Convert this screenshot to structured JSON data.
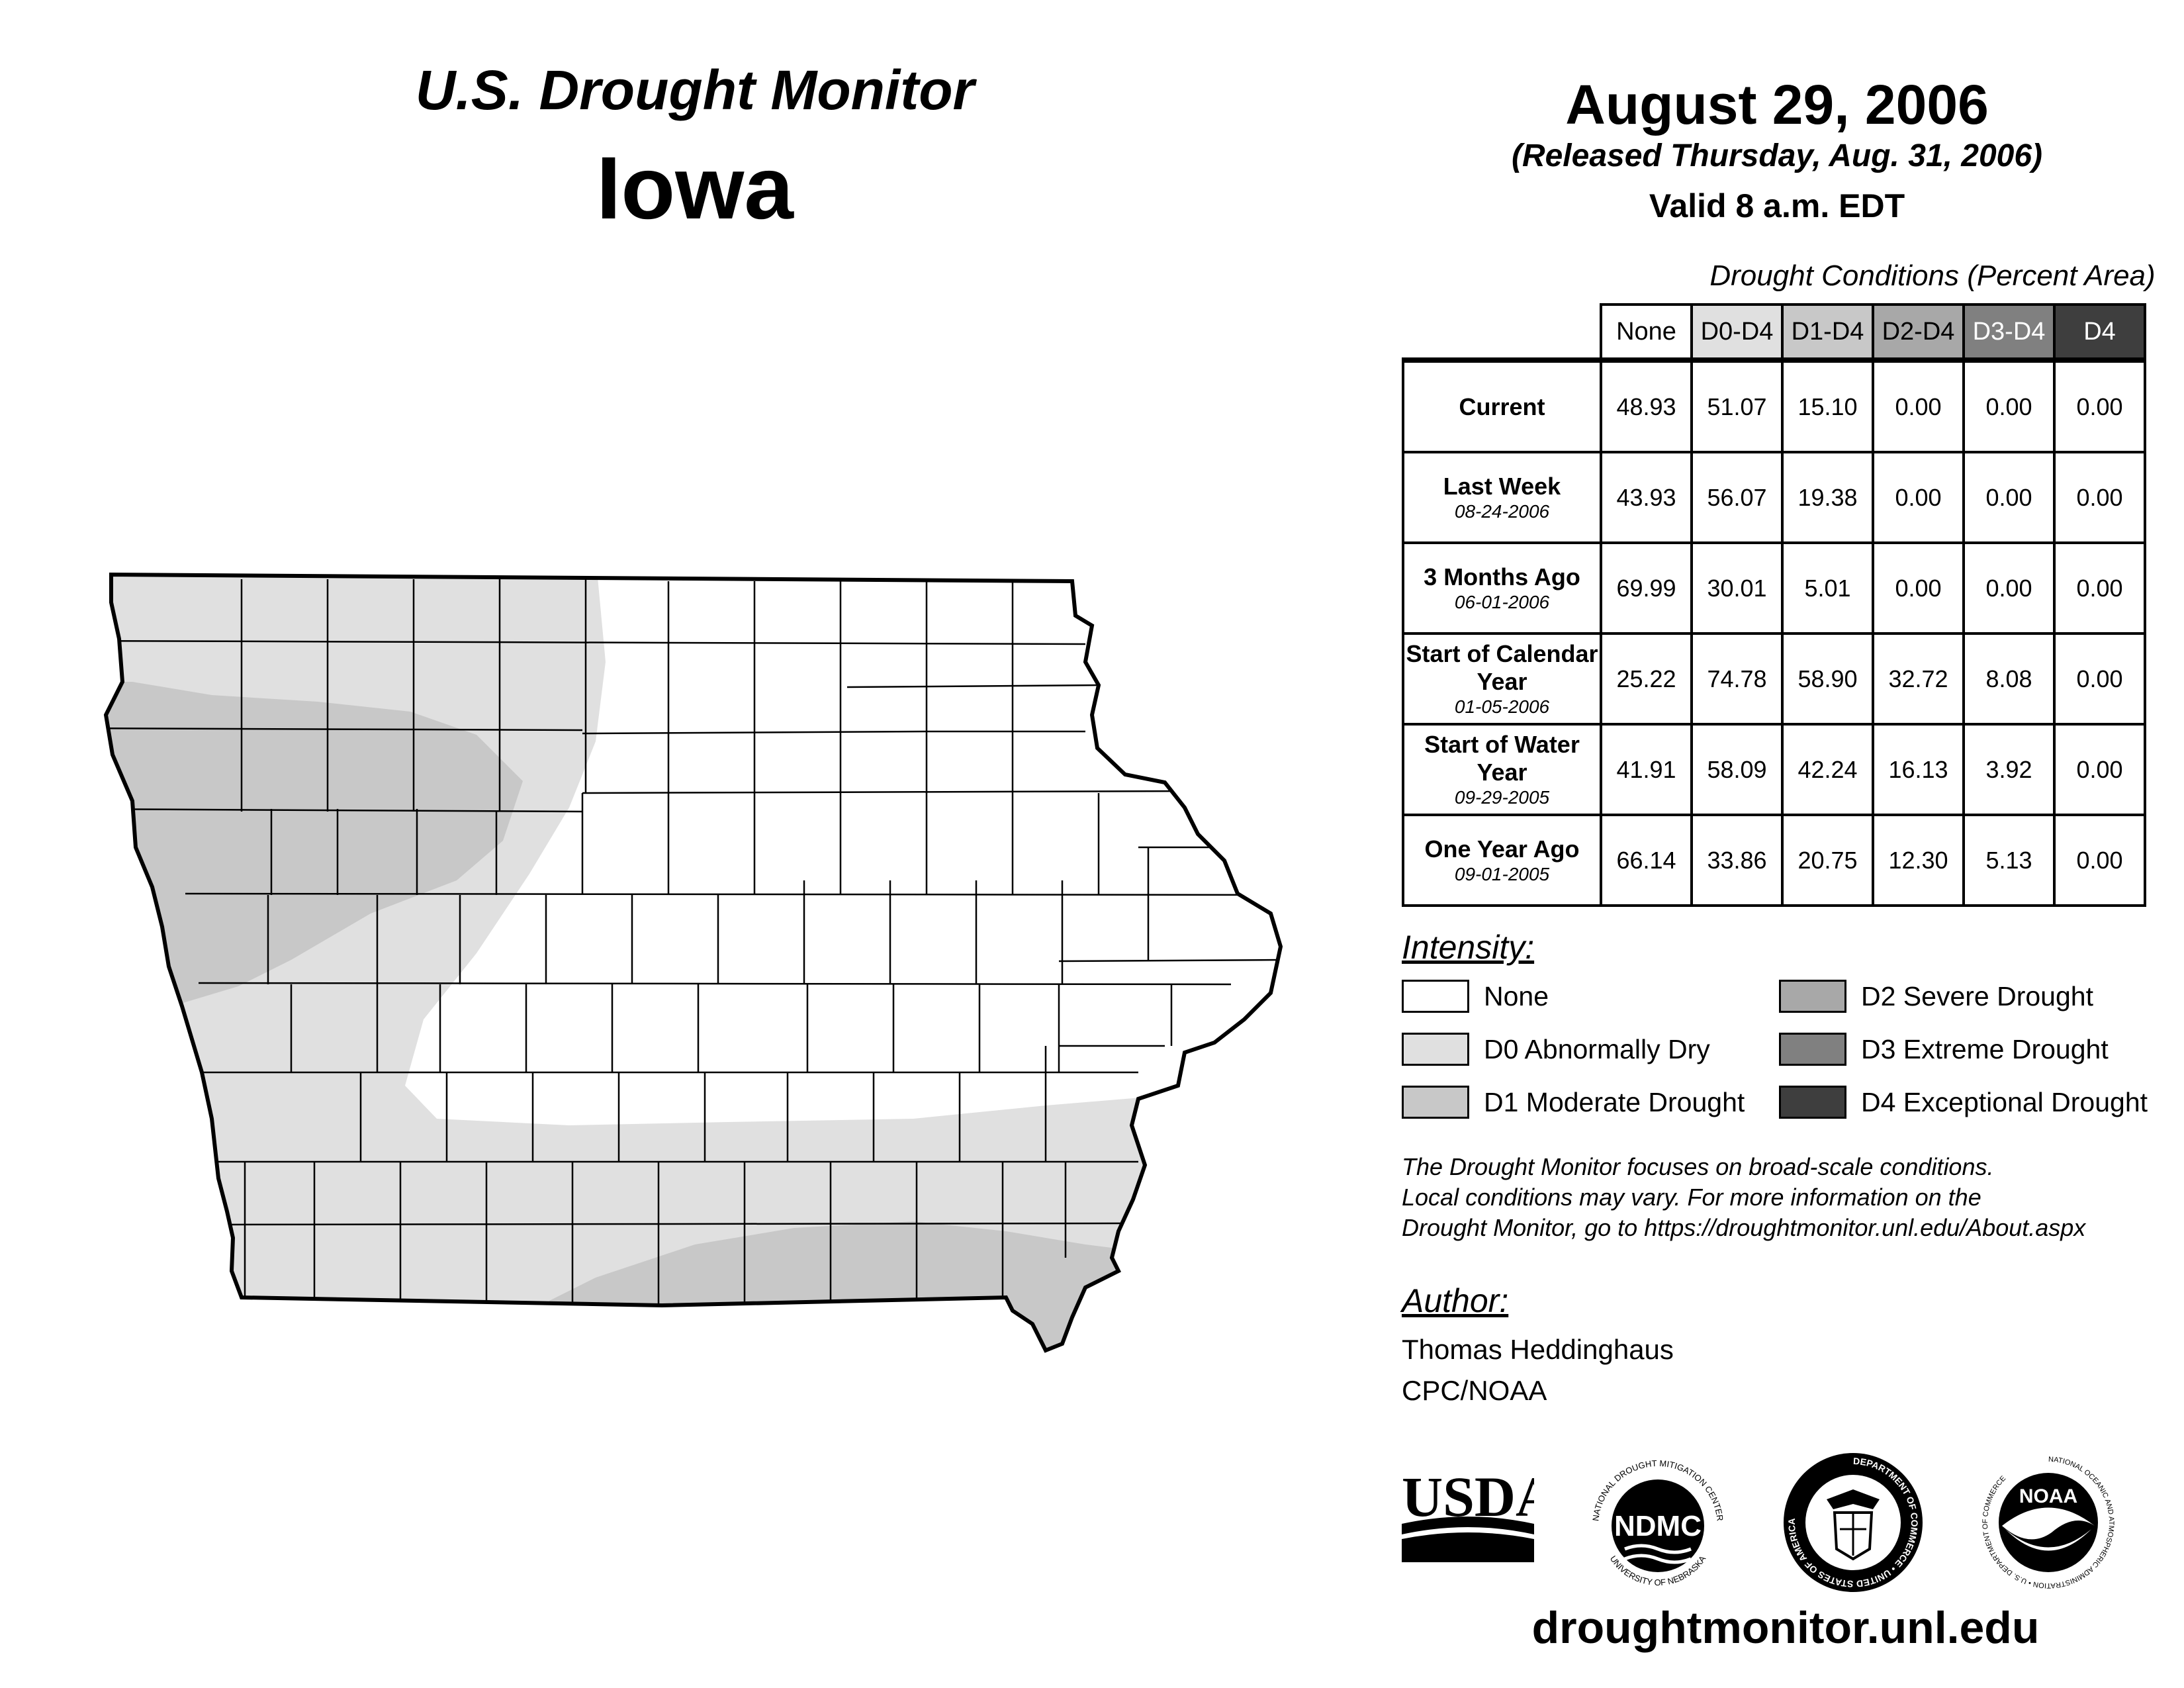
{
  "header": {
    "title": "U.S. Drought Monitor",
    "state": "Iowa",
    "date": "August 29, 2006",
    "released": "(Released Thursday, Aug. 31, 2006)",
    "valid": "Valid 8 a.m. EDT"
  },
  "table": {
    "caption": "Drought Conditions (Percent Area)",
    "columns": [
      "None",
      "D0-D4",
      "D1-D4",
      "D2-D4",
      "D3-D4",
      "D4"
    ],
    "rows": [
      {
        "label": "Current",
        "sublabel": "",
        "values": [
          "48.93",
          "51.07",
          "15.10",
          "0.00",
          "0.00",
          "0.00"
        ]
      },
      {
        "label": "Last Week",
        "sublabel": "08-24-2006",
        "values": [
          "43.93",
          "56.07",
          "19.38",
          "0.00",
          "0.00",
          "0.00"
        ]
      },
      {
        "label": "3 Months Ago",
        "sublabel": "06-01-2006",
        "values": [
          "69.99",
          "30.01",
          "5.01",
          "0.00",
          "0.00",
          "0.00"
        ]
      },
      {
        "label": "Start of Calendar Year",
        "sublabel": "01-05-2006",
        "values": [
          "25.22",
          "74.78",
          "58.90",
          "32.72",
          "8.08",
          "0.00"
        ]
      },
      {
        "label": "Start of Water Year",
        "sublabel": "09-29-2005",
        "values": [
          "41.91",
          "58.09",
          "42.24",
          "16.13",
          "3.92",
          "0.00"
        ]
      },
      {
        "label": "One Year Ago",
        "sublabel": "09-01-2005",
        "values": [
          "66.14",
          "33.86",
          "20.75",
          "12.30",
          "5.13",
          "0.00"
        ]
      }
    ]
  },
  "intensity": {
    "title": "Intensity:",
    "items": [
      {
        "label": "None",
        "color": "#ffffff"
      },
      {
        "label": "D0 Abnormally Dry",
        "color": "#e0e0e0"
      },
      {
        "label": "D1 Moderate Drought",
        "color": "#c8c8c8"
      },
      {
        "label": "D2 Severe Drought",
        "color": "#a8a8a8"
      },
      {
        "label": "D3 Extreme Drought",
        "color": "#808080"
      },
      {
        "label": "D4 Exceptional Drought",
        "color": "#3e3e3e"
      }
    ]
  },
  "disclaimer": [
    "The Drought Monitor focuses on broad-scale conditions.",
    "Local conditions may vary. For more information on the",
    "Drought Monitor, go to https://droughtmonitor.unl.edu/About.aspx"
  ],
  "author": {
    "title": "Author:",
    "name": "Thomas Heddinghaus",
    "org": "CPC/NOAA"
  },
  "logos": {
    "usda": "USDA",
    "ndmc": "NDMC",
    "ndmc_ring_top": "NATIONAL DROUGHT MITIGATION CENTER",
    "ndmc_ring_bottom": "UNIVERSITY OF NEBRASKA",
    "doc_ring": "DEPARTMENT OF COMMERCE • UNITED STATES OF AMERICA",
    "noaa": "NOAA",
    "noaa_ring": "NATIONAL OCEANIC AND ATMOSPHERIC ADMINISTRATION • U.S. DEPARTMENT OF COMMERCE"
  },
  "footer_url": "droughtmonitor.unl.edu",
  "map": {
    "state_name": "Iowa",
    "fill_none": "#ffffff",
    "fill_d0": "#e0e0e0",
    "fill_d1": "#c8c8c8"
  }
}
